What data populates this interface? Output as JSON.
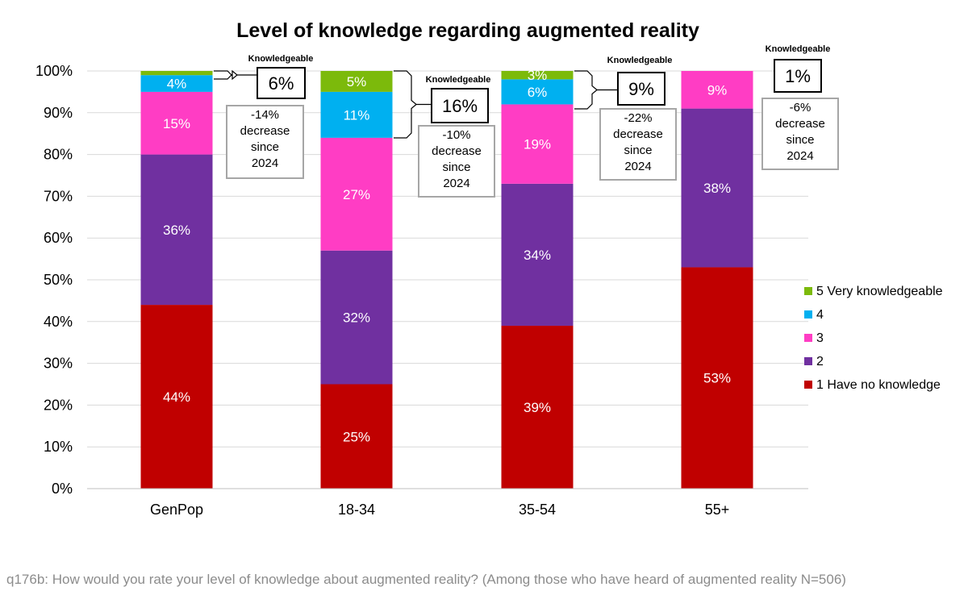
{
  "chart_data": {
    "type": "bar",
    "stacked": true,
    "title": "Level of knowledge regarding augmented reality",
    "categories": [
      "GenPop",
      "18-34",
      "35-54",
      "55+"
    ],
    "series": [
      {
        "name": "1 Have no knowledge",
        "color": "#c00000",
        "values": [
          44,
          25,
          39,
          53
        ]
      },
      {
        "name": "2",
        "color": "#7030a0",
        "values": [
          36,
          32,
          34,
          38
        ]
      },
      {
        "name": "3",
        "color": "#ff3dc4",
        "values": [
          15,
          27,
          19,
          9
        ]
      },
      {
        "name": "4",
        "color": "#00b0f0",
        "values": [
          4,
          11,
          6,
          1
        ]
      },
      {
        "name": "5 Very knowledgeable",
        "color": "#7cba0b",
        "values": [
          2,
          5,
          3,
          0
        ]
      }
    ],
    "data_labels": [
      [
        "44%",
        "25%",
        "39%",
        "53%"
      ],
      [
        "36%",
        "32%",
        "34%",
        "38%"
      ],
      [
        "15%",
        "27%",
        "19%",
        "9%"
      ],
      [
        "4%",
        "11%",
        "6%",
        ""
      ],
      [
        "",
        "5%",
        "3%",
        ""
      ]
    ],
    "y_ticks": [
      "0%",
      "10%",
      "20%",
      "30%",
      "40%",
      "50%",
      "60%",
      "70%",
      "80%",
      "90%",
      "100%"
    ],
    "ylim": [
      0,
      100
    ],
    "grid": true,
    "legend_position": "right",
    "knowledgeable": [
      {
        "label": "Knowledgeable",
        "value": "6%",
        "change": [
          "-14%",
          "decrease",
          "since",
          "2024"
        ]
      },
      {
        "label": "Knowledgeable",
        "value": "16%",
        "change": [
          "-10%",
          "decrease",
          "since",
          "2024"
        ]
      },
      {
        "label": "Knowledgeable",
        "value": "9%",
        "change": [
          "-22%",
          "decrease",
          "since",
          "2024"
        ]
      },
      {
        "label": "Knowledgeable",
        "value": "1%",
        "change": [
          "-6%",
          "decrease",
          "since",
          "2024"
        ]
      }
    ]
  },
  "footnote": "q176b: How would you rate your level of knowledge about augmented reality? (Among those who have heard of augmented reality N=506)"
}
